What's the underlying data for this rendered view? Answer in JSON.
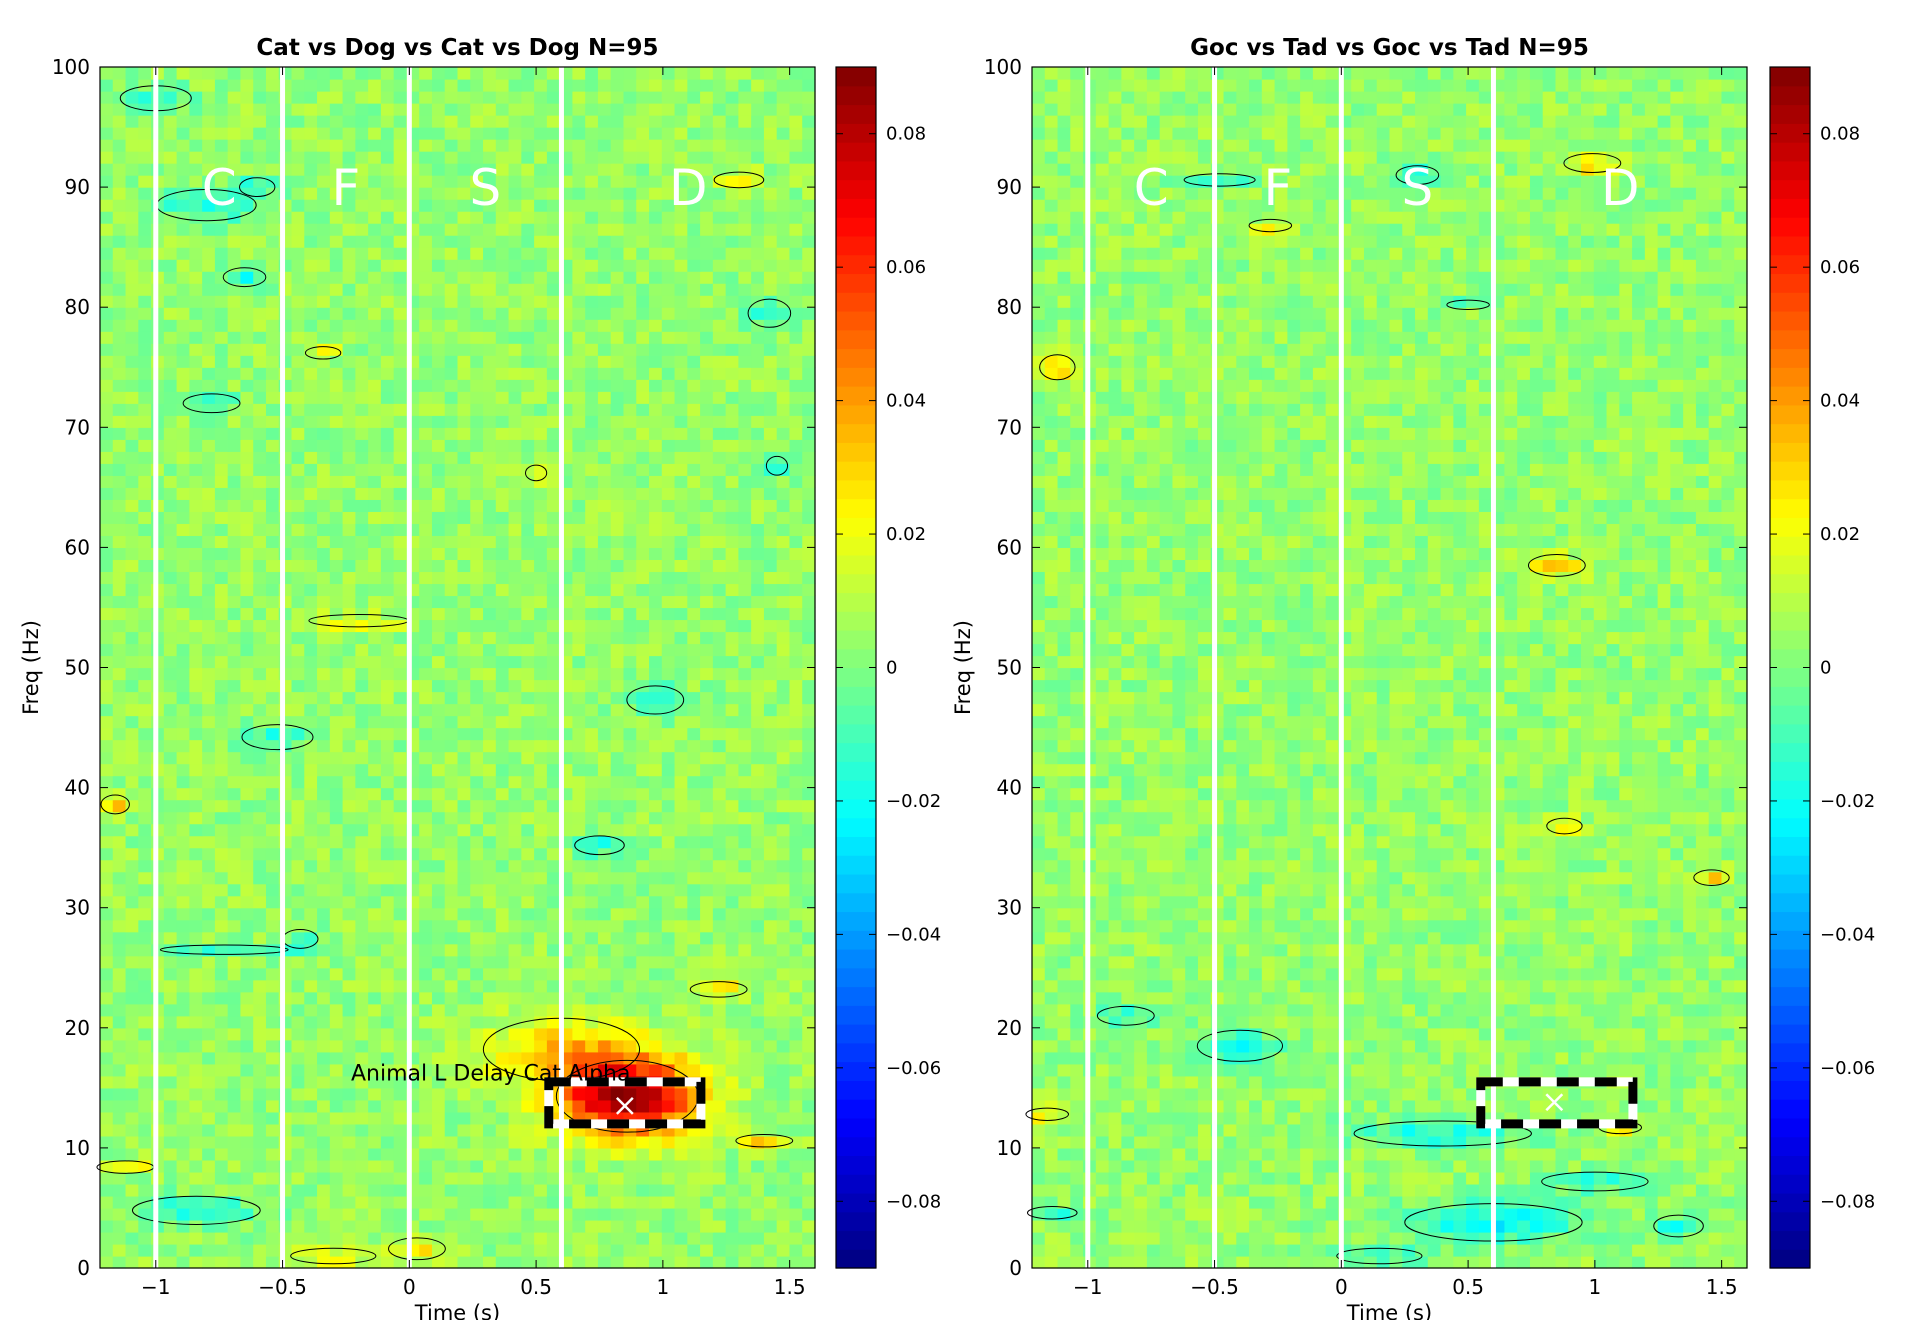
{
  "colormap": "jet",
  "colors": {
    "epoch_line": "#ffffff",
    "contour": "#000000",
    "roi_box_dash_a": "#000000",
    "roi_box_dash_b": "#ffffff",
    "roi_marker": "#ffffff"
  },
  "chart_data": [
    {
      "type": "heatmap",
      "title": "Cat vs Dog vs Cat vs Dog N=95",
      "xlabel": "Time (s)",
      "ylabel": "Freq (Hz)",
      "xlim": [
        -1.22,
        1.6
      ],
      "ylim": [
        0,
        100
      ],
      "xticks": [
        -1,
        -0.5,
        0,
        0.5,
        1,
        1.5
      ],
      "xtick_labels": [
        "-1",
        "-0.5",
        "0",
        "0.5",
        "1",
        "1.5"
      ],
      "yticks": [
        0,
        10,
        20,
        30,
        40,
        50,
        60,
        70,
        80,
        90,
        100
      ],
      "colorbar": {
        "clim": [
          -0.09,
          0.09
        ],
        "ticks": [
          0.08,
          0.06,
          0.04,
          0.02,
          0,
          -0.02,
          -0.04,
          -0.06,
          -0.08
        ],
        "tick_labels": [
          "0.08",
          "0.06",
          "0.04",
          "0.02",
          "0",
          "−0.02",
          "−0.04",
          "−0.06",
          "−0.08"
        ]
      },
      "epoch_lines_x": [
        -1.0,
        -0.5,
        0.0,
        0.6
      ],
      "phase_labels": [
        {
          "text": "C",
          "x": -0.75,
          "y": 90
        },
        {
          "text": "F",
          "x": -0.25,
          "y": 90
        },
        {
          "text": "S",
          "x": 0.3,
          "y": 90
        },
        {
          "text": "D",
          "x": 1.1,
          "y": 90
        }
      ],
      "roi_box": {
        "x": [
          0.55,
          1.15
        ],
        "y": [
          12,
          15.5
        ]
      },
      "roi_marker": {
        "x": 0.85,
        "y": 13.5
      },
      "annotation": {
        "text": "Animal L Delay Cat Alpha",
        "x": -0.23,
        "y": 16.2
      },
      "blobs": [
        {
          "x": 0.86,
          "y": 14.3,
          "sx": 0.2,
          "sy": 2.3,
          "amp": 0.083
        },
        {
          "x": 0.6,
          "y": 18.2,
          "sx": 0.22,
          "sy": 2.0,
          "amp": 0.026
        },
        {
          "x": -0.8,
          "y": 88.5,
          "sx": 0.14,
          "sy": 1.0,
          "amp": -0.022
        },
        {
          "x": -0.65,
          "y": 82.5,
          "sx": 0.06,
          "sy": 0.6,
          "amp": -0.022
        },
        {
          "x": 1.42,
          "y": 79.5,
          "sx": 0.06,
          "sy": 0.9,
          "amp": -0.024
        },
        {
          "x": -0.84,
          "y": 4.8,
          "sx": 0.18,
          "sy": 0.9,
          "amp": -0.022
        },
        {
          "x": 0.97,
          "y": 47.3,
          "sx": 0.08,
          "sy": 0.9,
          "amp": -0.022
        },
        {
          "x": 1.3,
          "y": 90.6,
          "sx": 0.07,
          "sy": 0.5,
          "amp": 0.026
        },
        {
          "x": 1.22,
          "y": 23.2,
          "sx": 0.08,
          "sy": 0.5,
          "amp": 0.024
        },
        {
          "x": -0.34,
          "y": 76.2,
          "sx": 0.05,
          "sy": 0.4,
          "amp": 0.024
        },
        {
          "x": -0.2,
          "y": 53.9,
          "sx": 0.14,
          "sy": 0.4,
          "amp": 0.022
        },
        {
          "x": 0.5,
          "y": 66.2,
          "sx": 0.03,
          "sy": 0.5,
          "amp": 0.028
        },
        {
          "x": -1.16,
          "y": 38.6,
          "sx": 0.04,
          "sy": 0.6,
          "amp": 0.026
        },
        {
          "x": -1.12,
          "y": 8.4,
          "sx": 0.08,
          "sy": 0.4,
          "amp": 0.024
        },
        {
          "x": 0.75,
          "y": 35.2,
          "sx": 0.07,
          "sy": 0.6,
          "amp": -0.022
        },
        {
          "x": -0.73,
          "y": 26.5,
          "sx": 0.18,
          "sy": 0.3,
          "amp": -0.02
        },
        {
          "x": -0.52,
          "y": 44.2,
          "sx": 0.1,
          "sy": 0.8,
          "amp": -0.02
        },
        {
          "x": -0.78,
          "y": 72.0,
          "sx": 0.08,
          "sy": 0.6,
          "amp": -0.02
        },
        {
          "x": -1.0,
          "y": 97.4,
          "sx": 0.1,
          "sy": 0.8,
          "amp": -0.02
        },
        {
          "x": -0.6,
          "y": 90.0,
          "sx": 0.05,
          "sy": 0.6,
          "amp": -0.022
        },
        {
          "x": 1.45,
          "y": 66.8,
          "sx": 0.03,
          "sy": 0.6,
          "amp": -0.022
        },
        {
          "x": 0.03,
          "y": 1.6,
          "sx": 0.08,
          "sy": 0.7,
          "amp": 0.02
        },
        {
          "x": 1.4,
          "y": 10.6,
          "sx": 0.08,
          "sy": 0.4,
          "amp": 0.024
        },
        {
          "x": -0.3,
          "y": 1.0,
          "sx": 0.12,
          "sy": 0.5,
          "amp": 0.022
        },
        {
          "x": -0.43,
          "y": 27.4,
          "sx": 0.05,
          "sy": 0.6,
          "amp": -0.02
        }
      ]
    },
    {
      "type": "heatmap",
      "title": "Goc vs Tad vs Goc vs Tad N=95",
      "xlabel": "Time (s)",
      "ylabel": "Freq (Hz)",
      "xlim": [
        -1.22,
        1.6
      ],
      "ylim": [
        0,
        100
      ],
      "xticks": [
        -1,
        -0.5,
        0,
        0.5,
        1,
        1.5
      ],
      "xtick_labels": [
        "-1",
        "-0.5",
        "0",
        "0.5",
        "1",
        "1.5"
      ],
      "yticks": [
        0,
        10,
        20,
        30,
        40,
        50,
        60,
        70,
        80,
        90,
        100
      ],
      "colorbar": {
        "clim": [
          -0.09,
          0.09
        ],
        "ticks": [
          0.08,
          0.06,
          0.04,
          0.02,
          0,
          -0.02,
          -0.04,
          -0.06,
          -0.08
        ],
        "tick_labels": [
          "0.08",
          "0.06",
          "0.04",
          "0.02",
          "0",
          "−0.02",
          "−0.04",
          "−0.06",
          "−0.08"
        ]
      },
      "epoch_lines_x": [
        -1.0,
        -0.5,
        0.0,
        0.6
      ],
      "phase_labels": [
        {
          "text": "C",
          "x": -0.75,
          "y": 90
        },
        {
          "text": "F",
          "x": -0.25,
          "y": 90
        },
        {
          "text": "S",
          "x": 0.3,
          "y": 90
        },
        {
          "text": "D",
          "x": 1.1,
          "y": 90
        }
      ],
      "roi_box": {
        "x": [
          0.55,
          1.15
        ],
        "y": [
          12,
          15.5
        ]
      },
      "roi_marker": {
        "x": 0.84,
        "y": 13.8
      },
      "annotation": {
        "text": "",
        "x": 0,
        "y": 0
      },
      "blobs": [
        {
          "x": 0.6,
          "y": 3.8,
          "sx": 0.25,
          "sy": 1.2,
          "amp": -0.028
        },
        {
          "x": 0.4,
          "y": 11.2,
          "sx": 0.25,
          "sy": 0.8,
          "amp": -0.022
        },
        {
          "x": 1.0,
          "y": 7.2,
          "sx": 0.15,
          "sy": 0.6,
          "amp": -0.02
        },
        {
          "x": 1.33,
          "y": 3.5,
          "sx": 0.07,
          "sy": 0.7,
          "amp": -0.024
        },
        {
          "x": -0.85,
          "y": 21.0,
          "sx": 0.08,
          "sy": 0.6,
          "amp": -0.022
        },
        {
          "x": -0.4,
          "y": 18.5,
          "sx": 0.12,
          "sy": 1.0,
          "amp": -0.02
        },
        {
          "x": -1.12,
          "y": 75.0,
          "sx": 0.05,
          "sy": 0.8,
          "amp": 0.028
        },
        {
          "x": 0.85,
          "y": 58.5,
          "sx": 0.08,
          "sy": 0.7,
          "amp": 0.024
        },
        {
          "x": 0.99,
          "y": 92.0,
          "sx": 0.08,
          "sy": 0.6,
          "amp": 0.026
        },
        {
          "x": 0.88,
          "y": 36.8,
          "sx": 0.05,
          "sy": 0.5,
          "amp": 0.024
        },
        {
          "x": 0.5,
          "y": 80.2,
          "sx": 0.06,
          "sy": 0.3,
          "amp": -0.024
        },
        {
          "x": 1.46,
          "y": 32.5,
          "sx": 0.05,
          "sy": 0.5,
          "amp": 0.024
        },
        {
          "x": -0.28,
          "y": 86.8,
          "sx": 0.06,
          "sy": 0.4,
          "amp": 0.022
        },
        {
          "x": 1.1,
          "y": 11.7,
          "sx": 0.06,
          "sy": 0.4,
          "amp": 0.022
        },
        {
          "x": 0.3,
          "y": 91.0,
          "sx": 0.06,
          "sy": 0.6,
          "amp": -0.02
        },
        {
          "x": -0.48,
          "y": 90.6,
          "sx": 0.1,
          "sy": 0.4,
          "amp": -0.02
        },
        {
          "x": -1.16,
          "y": 12.8,
          "sx": 0.06,
          "sy": 0.4,
          "amp": 0.022
        },
        {
          "x": -1.14,
          "y": 4.6,
          "sx": 0.07,
          "sy": 0.4,
          "amp": -0.022
        },
        {
          "x": 0.15,
          "y": 1.0,
          "sx": 0.12,
          "sy": 0.5,
          "amp": -0.022
        }
      ]
    }
  ]
}
